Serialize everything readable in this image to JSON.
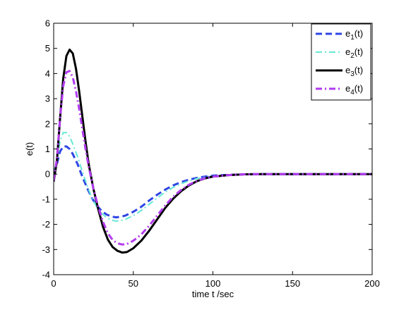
{
  "chart_data": {
    "type": "line",
    "title": "",
    "xlabel": "time t /sec",
    "ylabel": "e(t)",
    "xlim": [
      0,
      200
    ],
    "ylim": [
      -4,
      6
    ],
    "xticks": [
      0,
      50,
      100,
      150,
      200
    ],
    "yticks": [
      -4,
      -3,
      -2,
      -1,
      0,
      1,
      2,
      3,
      4,
      5,
      6
    ],
    "grid": false,
    "legend_position": "top-right",
    "series": [
      {
        "name": "e1(t)",
        "legend_base": "e",
        "legend_sub": "1",
        "legend_suffix": "(t)",
        "color": "#2F45E5",
        "style": "dashed",
        "width": 3,
        "points": [
          [
            0,
            0.05
          ],
          [
            2,
            0.4
          ],
          [
            4,
            0.9
          ],
          [
            6,
            1.1
          ],
          [
            8,
            1.1
          ],
          [
            10,
            1.0
          ],
          [
            12,
            0.8
          ],
          [
            15,
            0.4
          ],
          [
            18,
            -0.1
          ],
          [
            21,
            -0.55
          ],
          [
            24,
            -0.95
          ],
          [
            27,
            -1.25
          ],
          [
            30,
            -1.45
          ],
          [
            33,
            -1.6
          ],
          [
            36,
            -1.68
          ],
          [
            39,
            -1.72
          ],
          [
            42,
            -1.7
          ],
          [
            45,
            -1.65
          ],
          [
            50,
            -1.5
          ],
          [
            55,
            -1.3
          ],
          [
            60,
            -1.05
          ],
          [
            65,
            -0.82
          ],
          [
            70,
            -0.62
          ],
          [
            75,
            -0.45
          ],
          [
            80,
            -0.32
          ],
          [
            85,
            -0.22
          ],
          [
            90,
            -0.15
          ],
          [
            95,
            -0.1
          ],
          [
            100,
            -0.06
          ],
          [
            110,
            -0.03
          ],
          [
            120,
            -0.01
          ],
          [
            130,
            0
          ],
          [
            200,
            0
          ]
        ]
      },
      {
        "name": "e2(t)",
        "legend_base": "e",
        "legend_sub": "2",
        "legend_suffix": "(t)",
        "color": "#66E8D4",
        "style": "dashdot",
        "width": 2,
        "points": [
          [
            0,
            0
          ],
          [
            2,
            0.5
          ],
          [
            4,
            1.3
          ],
          [
            6,
            1.65
          ],
          [
            8,
            1.65
          ],
          [
            10,
            1.5
          ],
          [
            12,
            1.2
          ],
          [
            15,
            0.7
          ],
          [
            18,
            0.1
          ],
          [
            21,
            -0.45
          ],
          [
            24,
            -0.95
          ],
          [
            27,
            -1.3
          ],
          [
            30,
            -1.55
          ],
          [
            33,
            -1.72
          ],
          [
            36,
            -1.82
          ],
          [
            39,
            -1.87
          ],
          [
            42,
            -1.85
          ],
          [
            45,
            -1.8
          ],
          [
            50,
            -1.65
          ],
          [
            55,
            -1.45
          ],
          [
            60,
            -1.2
          ],
          [
            65,
            -0.95
          ],
          [
            70,
            -0.72
          ],
          [
            75,
            -0.53
          ],
          [
            80,
            -0.38
          ],
          [
            85,
            -0.27
          ],
          [
            90,
            -0.18
          ],
          [
            95,
            -0.12
          ],
          [
            100,
            -0.08
          ],
          [
            110,
            -0.04
          ],
          [
            120,
            -0.02
          ],
          [
            130,
            0
          ],
          [
            200,
            0
          ]
        ]
      },
      {
        "name": "e3(t)",
        "legend_base": "e",
        "legend_sub": "3",
        "legend_suffix": "(t)",
        "color": "#000000",
        "style": "solid",
        "width": 3,
        "points": [
          [
            0,
            -0.3
          ],
          [
            2,
            0.5
          ],
          [
            4,
            2.2
          ],
          [
            6,
            3.8
          ],
          [
            8,
            4.7
          ],
          [
            10,
            4.95
          ],
          [
            12,
            4.8
          ],
          [
            14,
            4.2
          ],
          [
            16,
            3.3
          ],
          [
            18,
            2.3
          ],
          [
            20,
            1.3
          ],
          [
            22,
            0.4
          ],
          [
            25,
            -0.6
          ],
          [
            28,
            -1.4
          ],
          [
            31,
            -2.1
          ],
          [
            34,
            -2.6
          ],
          [
            37,
            -2.9
          ],
          [
            40,
            -3.05
          ],
          [
            43,
            -3.12
          ],
          [
            46,
            -3.1
          ],
          [
            50,
            -2.95
          ],
          [
            55,
            -2.65
          ],
          [
            60,
            -2.25
          ],
          [
            65,
            -1.8
          ],
          [
            70,
            -1.35
          ],
          [
            75,
            -0.98
          ],
          [
            80,
            -0.68
          ],
          [
            85,
            -0.45
          ],
          [
            90,
            -0.28
          ],
          [
            95,
            -0.17
          ],
          [
            100,
            -0.1
          ],
          [
            110,
            -0.04
          ],
          [
            120,
            -0.01
          ],
          [
            130,
            0
          ],
          [
            200,
            0
          ]
        ]
      },
      {
        "name": "e4(t)",
        "legend_base": "e",
        "legend_sub": "4",
        "legend_suffix": "(t)",
        "color": "#B23BEF",
        "style": "dashdot",
        "width": 3,
        "points": [
          [
            0,
            -0.25
          ],
          [
            2,
            0.6
          ],
          [
            4,
            2.2
          ],
          [
            6,
            3.5
          ],
          [
            8,
            4.05
          ],
          [
            10,
            4.1
          ],
          [
            12,
            3.85
          ],
          [
            14,
            3.3
          ],
          [
            16,
            2.6
          ],
          [
            18,
            1.8
          ],
          [
            20,
            1.0
          ],
          [
            22,
            0.3
          ],
          [
            25,
            -0.6
          ],
          [
            28,
            -1.3
          ],
          [
            31,
            -1.9
          ],
          [
            34,
            -2.35
          ],
          [
            37,
            -2.62
          ],
          [
            40,
            -2.75
          ],
          [
            43,
            -2.8
          ],
          [
            46,
            -2.78
          ],
          [
            50,
            -2.65
          ],
          [
            55,
            -2.4
          ],
          [
            60,
            -2.05
          ],
          [
            65,
            -1.65
          ],
          [
            70,
            -1.25
          ],
          [
            75,
            -0.9
          ],
          [
            80,
            -0.63
          ],
          [
            85,
            -0.42
          ],
          [
            90,
            -0.27
          ],
          [
            95,
            -0.16
          ],
          [
            100,
            -0.1
          ],
          [
            110,
            -0.04
          ],
          [
            120,
            -0.01
          ],
          [
            130,
            0
          ],
          [
            200,
            0
          ]
        ]
      }
    ]
  }
}
